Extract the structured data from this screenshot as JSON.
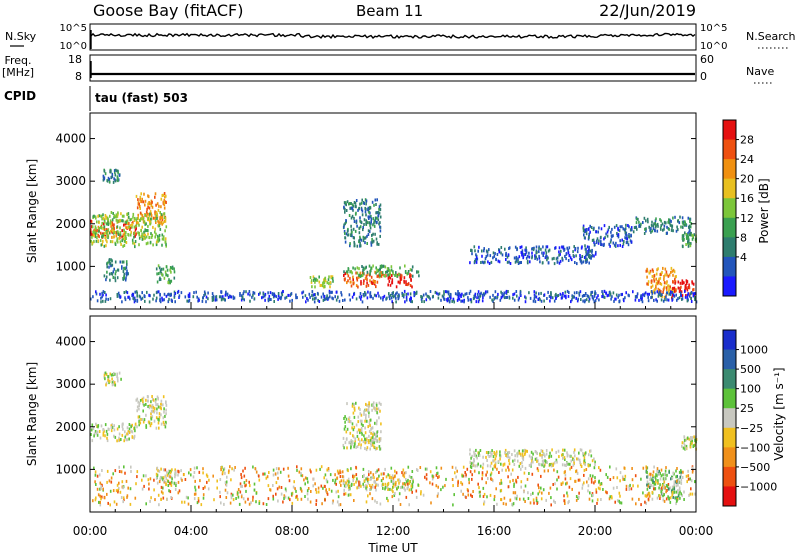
{
  "header": {
    "station": "Goose Bay (fitACF)",
    "beam": "Beam 11",
    "date": "22/Jun/2019"
  },
  "strips": {
    "nsky": {
      "label": "N.Sky",
      "left_ticks": [
        "10^5",
        "10^0"
      ],
      "right_label": "N.Search",
      "right_ticks": [
        "10^5",
        "10^0"
      ]
    },
    "freq": {
      "label_line1": "Freq.",
      "label_line2": "[MHz]",
      "left_ticks": [
        "18",
        "8"
      ],
      "right_label": "Nave",
      "right_ticks": [
        "60",
        "0"
      ]
    },
    "cpid": {
      "label": "CPID",
      "text": "tau (fast) 503"
    }
  },
  "colors": {
    "power": [
      "#1a1aff",
      "#2255bb",
      "#2e7d6e",
      "#3aa050",
      "#7cc63a",
      "#e8c020",
      "#f09010",
      "#ee5010",
      "#e51010"
    ],
    "velocity": [
      "#1a2ecc",
      "#2a60a8",
      "#3b8a70",
      "#5dc23a",
      "#c8c8c0",
      "#f0c020",
      "#f0901a",
      "#ee5010",
      "#e51010"
    ],
    "ground_scatter": "#c8c8c0"
  },
  "chart_data": [
    {
      "type": "heatmap",
      "name": "power",
      "xlabel": "",
      "ylabel": "Slant Range [km]",
      "y_ticks": [
        1000,
        2000,
        3000,
        4000
      ],
      "ylim": [
        0,
        4600
      ],
      "xlim": [
        0,
        24
      ],
      "colorbar": {
        "label": "Power [dB]",
        "tick_labels": [
          "4",
          "8",
          "12",
          "16",
          "20",
          "24",
          "28"
        ]
      },
      "regions": [
        {
          "t": [
            0.0,
            1.8
          ],
          "r": [
            1700,
            2100
          ],
          "level": 7
        },
        {
          "t": [
            1.8,
            3.0
          ],
          "r": [
            2000,
            2750
          ],
          "level": 6
        },
        {
          "t": [
            0.0,
            3.0
          ],
          "r": [
            1500,
            2300
          ],
          "level": 4
        },
        {
          "t": [
            0.5,
            1.2
          ],
          "r": [
            3000,
            3300
          ],
          "level": 2
        },
        {
          "t": [
            0.5,
            1.5
          ],
          "r": [
            700,
            1200
          ],
          "level": 2
        },
        {
          "t": [
            2.6,
            3.4
          ],
          "r": [
            650,
            1050
          ],
          "level": 3
        },
        {
          "t": [
            8.7,
            9.6
          ],
          "r": [
            550,
            800
          ],
          "level": 4
        },
        {
          "t": [
            10.0,
            11.6
          ],
          "r": [
            550,
            900
          ],
          "level": 7
        },
        {
          "t": [
            11.6,
            12.8
          ],
          "r": [
            550,
            850
          ],
          "level": 8
        },
        {
          "t": [
            10.0,
            13.0
          ],
          "r": [
            800,
            1050
          ],
          "level": 3
        },
        {
          "t": [
            10.0,
            11.5
          ],
          "r": [
            1500,
            2600
          ],
          "level": 2
        },
        {
          "t": [
            15.0,
            20.0
          ],
          "r": [
            1100,
            1500
          ],
          "level": 1
        },
        {
          "t": [
            19.5,
            21.5
          ],
          "r": [
            1500,
            2000
          ],
          "level": 1
        },
        {
          "t": [
            21.5,
            23.8
          ],
          "r": [
            1800,
            2200
          ],
          "level": 2
        },
        {
          "t": [
            22.0,
            23.2
          ],
          "r": [
            300,
            1000
          ],
          "level": 6
        },
        {
          "t": [
            23.0,
            23.9
          ],
          "r": [
            250,
            700
          ],
          "level": 8
        },
        {
          "t": [
            23.4,
            24.0
          ],
          "r": [
            1500,
            1800
          ],
          "level": 3
        },
        {
          "t": [
            0.0,
            24.0
          ],
          "r": [
            200,
            450
          ],
          "level": 1
        }
      ]
    },
    {
      "type": "heatmap",
      "name": "velocity",
      "xlabel": "Time UT",
      "ylabel": "Slant Range [km]",
      "x_ticks": [
        "00:00",
        "04:00",
        "08:00",
        "12:00",
        "16:00",
        "20:00",
        "00:00"
      ],
      "y_ticks": [
        1000,
        2000,
        3000,
        4000
      ],
      "ylim": [
        0,
        4600
      ],
      "xlim": [
        0,
        24
      ],
      "colorbar": {
        "label": "Velocity [m s⁻¹]",
        "tick_labels": [
          "1000",
          "500",
          "100",
          "25",
          "−25",
          "−100",
          "−500",
          "−1000"
        ]
      },
      "regions": [
        {
          "t": [
            0.0,
            1.8
          ],
          "r": [
            1700,
            2100
          ],
          "level": 4
        },
        {
          "t": [
            1.8,
            3.0
          ],
          "r": [
            2000,
            2750
          ],
          "level": 4
        },
        {
          "t": [
            0.5,
            1.2
          ],
          "r": [
            3000,
            3300
          ],
          "level": 4
        },
        {
          "t": [
            2.6,
            3.4
          ],
          "r": [
            650,
            1050
          ],
          "level": 4
        },
        {
          "t": [
            10.0,
            12.8
          ],
          "r": [
            550,
            900
          ],
          "level": 4
        },
        {
          "t": [
            10.0,
            11.5
          ],
          "r": [
            1500,
            2600
          ],
          "level": 4
        },
        {
          "t": [
            15.0,
            20.0
          ],
          "r": [
            1100,
            1500
          ],
          "level": 4
        },
        {
          "t": [
            22.0,
            23.5
          ],
          "r": [
            300,
            1000
          ],
          "level": 3
        },
        {
          "t": [
            23.4,
            24.0
          ],
          "r": [
            1500,
            1800
          ],
          "level": 4
        },
        {
          "t": [
            0.0,
            24.0
          ],
          "r": [
            200,
            1100
          ],
          "level": 5
        }
      ]
    }
  ]
}
